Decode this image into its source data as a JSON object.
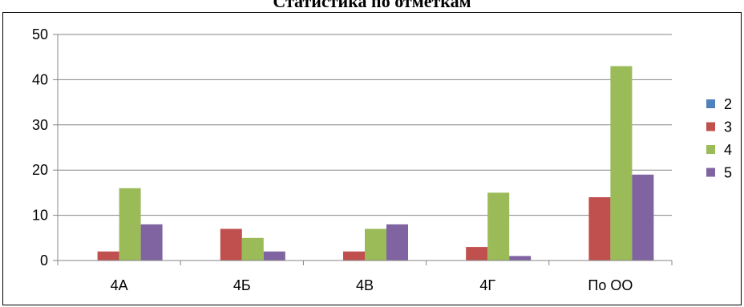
{
  "chart_data": {
    "type": "bar",
    "title": "Статистика по отметкам",
    "xlabel": "",
    "ylabel": "",
    "categories": [
      "4А",
      "4Б",
      "4В",
      "4Г",
      "По ОО"
    ],
    "series": [
      {
        "name": "2",
        "color": "#4f81bd",
        "values": [
          0,
          0,
          0,
          0,
          0
        ]
      },
      {
        "name": "3",
        "color": "#c0504d",
        "values": [
          2,
          7,
          2,
          3,
          14
        ]
      },
      {
        "name": "4",
        "color": "#9bbb59",
        "values": [
          16,
          5,
          7,
          15,
          43
        ]
      },
      {
        "name": "5",
        "color": "#8064a2",
        "values": [
          8,
          2,
          8,
          1,
          19
        ]
      }
    ],
    "ylim": [
      0,
      50
    ],
    "yticks": [
      0,
      10,
      20,
      30,
      40,
      50
    ],
    "grid": true,
    "legend": "right"
  }
}
